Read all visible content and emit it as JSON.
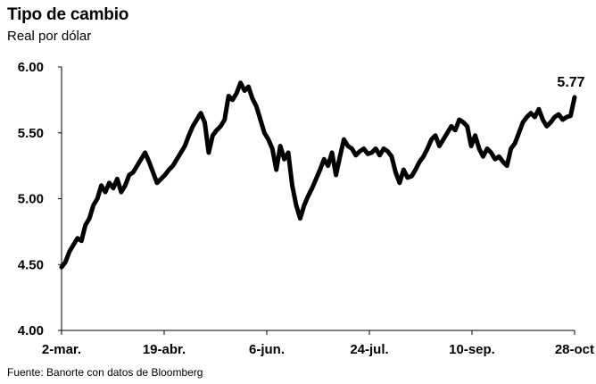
{
  "title": "Tipo de cambio",
  "subtitle": "Real por dólar",
  "source": "Fuente: Banorte con datos de Bloomberg",
  "chart_data": {
    "type": "line",
    "title": "Tipo de cambio",
    "ylabel": "Real por dólar",
    "xlabel": "",
    "ylim": [
      4.0,
      6.0
    ],
    "yticks": [
      4.0,
      4.5,
      5.0,
      5.5,
      6.0
    ],
    "ytick_labels": [
      "4.00",
      "4.50",
      "5.00",
      "5.50",
      "6.00"
    ],
    "xtick_labels": [
      "2-mar.",
      "19-abr.",
      "6-jun.",
      "24-jul.",
      "10-sep.",
      "28-oct"
    ],
    "grid": false,
    "line_color": "#000000",
    "end_label": "5.77",
    "series": [
      {
        "values": [
          4.48,
          4.52,
          4.6,
          4.65,
          4.7,
          4.68,
          4.8,
          4.85,
          4.95,
          5.0,
          5.1,
          5.05,
          5.12,
          5.08,
          5.15,
          5.05,
          5.1,
          5.18,
          5.2,
          5.25,
          5.3,
          5.35,
          5.28,
          5.2,
          5.12,
          5.15,
          5.18,
          5.22,
          5.25,
          5.3,
          5.35,
          5.4,
          5.48,
          5.55,
          5.6,
          5.65,
          5.58,
          5.35,
          5.48,
          5.52,
          5.55,
          5.6,
          5.78,
          5.75,
          5.8,
          5.88,
          5.82,
          5.85,
          5.76,
          5.7,
          5.6,
          5.5,
          5.45,
          5.38,
          5.22,
          5.4,
          5.3,
          5.35,
          5.1,
          4.95,
          4.85,
          4.95,
          5.02,
          5.08,
          5.15,
          5.22,
          5.3,
          5.25,
          5.35,
          5.18,
          5.32,
          5.45,
          5.4,
          5.38,
          5.33,
          5.36,
          5.38,
          5.34,
          5.35,
          5.38,
          5.33,
          5.38,
          5.36,
          5.32,
          5.2,
          5.12,
          5.22,
          5.16,
          5.17,
          5.22,
          5.28,
          5.32,
          5.38,
          5.45,
          5.48,
          5.4,
          5.45,
          5.5,
          5.55,
          5.52,
          5.6,
          5.58,
          5.55,
          5.4,
          5.48,
          5.38,
          5.32,
          5.38,
          5.35,
          5.3,
          5.32,
          5.28,
          5.25,
          5.38,
          5.42,
          5.5,
          5.58,
          5.62,
          5.65,
          5.62,
          5.68,
          5.6,
          5.55,
          5.58,
          5.62,
          5.64,
          5.6,
          5.62,
          5.63,
          5.77
        ]
      }
    ]
  }
}
